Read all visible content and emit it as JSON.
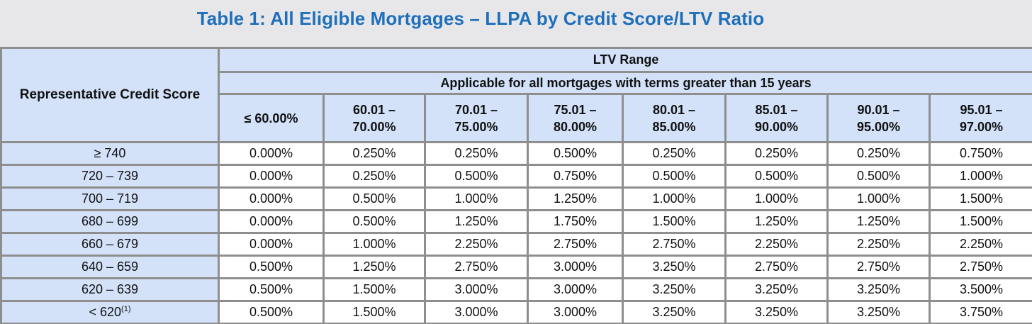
{
  "title": "Table 1: All Eligible Mortgages – LLPA by Credit Score/LTV Ratio",
  "table": {
    "corner_header": "Representative Credit Score",
    "group_header": "LTV Range",
    "sub_header": "Applicable for all mortgages with terms greater than 15 years",
    "columns": [
      {
        "line1": "≤ 60.00%",
        "line2": ""
      },
      {
        "line1": "60.01 –",
        "line2": "70.00%"
      },
      {
        "line1": "70.01 –",
        "line2": "75.00%"
      },
      {
        "line1": "75.01 –",
        "line2": "80.00%"
      },
      {
        "line1": "80.01 –",
        "line2": "85.00%"
      },
      {
        "line1": "85.01 –",
        "line2": "90.00%"
      },
      {
        "line1": "90.01 –",
        "line2": "95.00%"
      },
      {
        "line1": "95.01 –",
        "line2": "97.00%"
      }
    ],
    "rows": [
      {
        "score": "≥ 740",
        "footnote": "",
        "values": [
          "0.000%",
          "0.250%",
          "0.250%",
          "0.500%",
          "0.250%",
          "0.250%",
          "0.250%",
          "0.750%"
        ]
      },
      {
        "score": "720 – 739",
        "footnote": "",
        "values": [
          "0.000%",
          "0.250%",
          "0.500%",
          "0.750%",
          "0.500%",
          "0.500%",
          "0.500%",
          "1.000%"
        ]
      },
      {
        "score": "700 – 719",
        "footnote": "",
        "values": [
          "0.000%",
          "0.500%",
          "1.000%",
          "1.250%",
          "1.000%",
          "1.000%",
          "1.000%",
          "1.500%"
        ]
      },
      {
        "score": "680 – 699",
        "footnote": "",
        "values": [
          "0.000%",
          "0.500%",
          "1.250%",
          "1.750%",
          "1.500%",
          "1.250%",
          "1.250%",
          "1.500%"
        ]
      },
      {
        "score": "660 – 679",
        "footnote": "",
        "values": [
          "0.000%",
          "1.000%",
          "2.250%",
          "2.750%",
          "2.750%",
          "2.250%",
          "2.250%",
          "2.250%"
        ]
      },
      {
        "score": "640 – 659",
        "footnote": "",
        "values": [
          "0.500%",
          "1.250%",
          "2.750%",
          "3.000%",
          "3.250%",
          "2.750%",
          "2.750%",
          "2.750%"
        ]
      },
      {
        "score": "620 – 639",
        "footnote": "",
        "values": [
          "0.500%",
          "1.500%",
          "3.000%",
          "3.000%",
          "3.250%",
          "3.250%",
          "3.250%",
          "3.500%"
        ]
      },
      {
        "score": "< 620",
        "footnote": "(1)",
        "values": [
          "0.500%",
          "1.500%",
          "3.000%",
          "3.000%",
          "3.250%",
          "3.250%",
          "3.250%",
          "3.750%"
        ]
      }
    ]
  }
}
